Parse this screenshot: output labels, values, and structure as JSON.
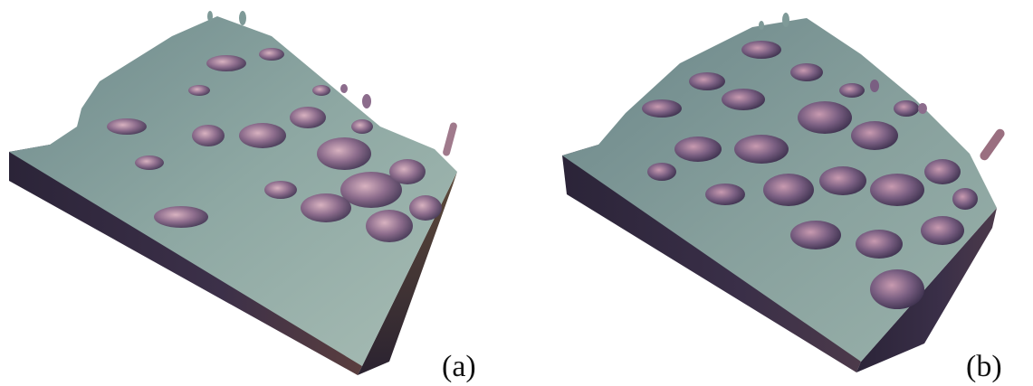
{
  "figure": {
    "panels": [
      {
        "label": "(a)"
      },
      {
        "label": "(b)"
      }
    ],
    "colors": {
      "top_surface": "#7f9a98",
      "top_highlight": "#a9c1b9",
      "side_dark": "#3a2f48",
      "side_mid": "#5a4662",
      "pit_wall": "#8a6a86",
      "pit_highlight": "#c9a2b4",
      "background": "#ffffff"
    }
  }
}
